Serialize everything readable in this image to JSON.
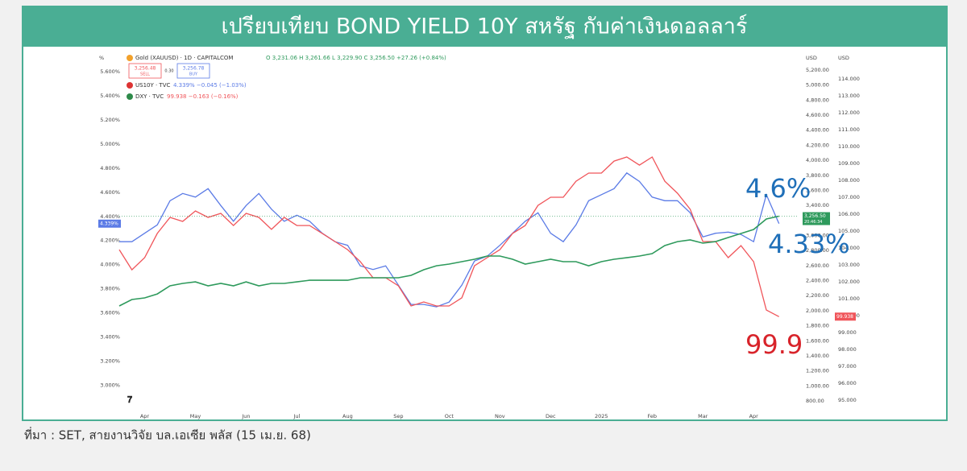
{
  "chart_data": {
    "type": "line",
    "title": "เปรียบเทียบ BOND YIELD 10Y สหรัฐ กับค่าเงินดอลลาร์",
    "source": "ที่มา : SET, สายงานวิจัย บล.เอเซีย พลัส (15 เม.ย. 68)",
    "axis_units": [
      "%",
      "USD",
      "USD"
    ],
    "x": [
      0.5,
      0.75,
      1,
      1.25,
      1.5,
      1.75,
      2,
      2.25,
      2.5,
      2.75,
      3,
      3.25,
      3.5,
      3.75,
      4,
      4.25,
      4.5,
      4.75,
      5,
      5.25,
      5.5,
      5.75,
      6,
      6.25,
      6.5,
      6.75,
      7,
      7.25,
      7.5,
      7.75,
      8,
      8.25,
      8.5,
      8.75,
      9,
      9.25,
      9.5,
      9.75,
      10,
      10.25,
      10.5,
      10.75,
      11,
      11.25,
      11.5,
      11.75,
      12,
      12.25,
      12.5,
      12.75,
      13,
      13.25,
      13.5
    ],
    "xlim": [
      0.5,
      13.87
    ],
    "xticks": [
      {
        "value": 1,
        "label": "Apr"
      },
      {
        "value": 2,
        "label": "May"
      },
      {
        "value": 3,
        "label": "Jun"
      },
      {
        "value": 4,
        "label": "Jul"
      },
      {
        "value": 5,
        "label": "Aug"
      },
      {
        "value": 6,
        "label": "Sep"
      },
      {
        "value": 7,
        "label": "Oct"
      },
      {
        "value": 8,
        "label": "Nov"
      },
      {
        "value": 9,
        "label": "Dec"
      },
      {
        "value": 10,
        "label": "2025"
      },
      {
        "value": 11,
        "label": "Feb"
      },
      {
        "value": 12,
        "label": "Mar"
      },
      {
        "value": 13,
        "label": "Apr"
      }
    ],
    "ylim": [
      2.79,
      5.74
    ],
    "yticks": [
      {
        "value": 3.0,
        "label": "3.000%"
      },
      {
        "value": 3.2,
        "label": "3.200%"
      },
      {
        "value": 3.4,
        "label": "3.400%"
      },
      {
        "value": 3.6,
        "label": "3.600%"
      },
      {
        "value": 3.8,
        "label": "3.800%"
      },
      {
        "value": 4.0,
        "label": "4.000%"
      },
      {
        "value": 4.2,
        "label": "4.200%"
      },
      {
        "value": 4.4,
        "label": "4.400%"
      },
      {
        "value": 4.6,
        "label": "4.600%"
      },
      {
        "value": 4.8,
        "label": "4.800%"
      },
      {
        "value": 5.0,
        "label": "5.000%"
      },
      {
        "value": 5.2,
        "label": "5.200%"
      },
      {
        "value": 5.4,
        "label": "5.400%"
      },
      {
        "value": 5.6,
        "label": "5.600%"
      }
    ],
    "y2lim": [
      672,
      5403
    ],
    "y2ticks": [
      {
        "value": 800,
        "label": "800.00"
      },
      {
        "value": 1000,
        "label": "1,000.00"
      },
      {
        "value": 1200,
        "label": "1,200.00"
      },
      {
        "value": 1400,
        "label": "1,400.00"
      },
      {
        "value": 1600,
        "label": "1,600.00"
      },
      {
        "value": 1800,
        "label": "1,800.00"
      },
      {
        "value": 2000,
        "label": "2,000.00"
      },
      {
        "value": 2200,
        "label": "2,200.00"
      },
      {
        "value": 2400,
        "label": "2,400.00"
      },
      {
        "value": 2600,
        "label": "2,600.00"
      },
      {
        "value": 2800,
        "label": "2,800.00"
      },
      {
        "value": 3000,
        "label": "3,000.00"
      },
      {
        "value": 3200,
        "label": "3,200.00"
      },
      {
        "value": 3400,
        "label": "3,400.00"
      },
      {
        "value": 3600,
        "label": "3,600.00"
      },
      {
        "value": 3800,
        "label": "3,800.00"
      },
      {
        "value": 4000,
        "label": "4,000.00"
      },
      {
        "value": 4200,
        "label": "4,200.00"
      },
      {
        "value": 4400,
        "label": "4,400.00"
      },
      {
        "value": 4600,
        "label": "4,600.00"
      },
      {
        "value": 4800,
        "label": "4,800.00"
      },
      {
        "value": 5000,
        "label": "5,000.00"
      },
      {
        "value": 5200,
        "label": "5,200.00"
      }
    ],
    "y3lim": [
      94.38,
      115.43
    ],
    "y3ticks": [
      {
        "value": 95,
        "label": "95.000"
      },
      {
        "value": 96,
        "label": "96.000"
      },
      {
        "value": 97,
        "label": "97.000"
      },
      {
        "value": 98,
        "label": "98.000"
      },
      {
        "value": 99,
        "label": "99.000"
      },
      {
        "value": 100,
        "label": "100.000"
      },
      {
        "value": 101,
        "label": "101.000"
      },
      {
        "value": 102,
        "label": "102.000"
      },
      {
        "value": 103,
        "label": "103.000"
      },
      {
        "value": 104,
        "label": "104.000"
      },
      {
        "value": 105,
        "label": "105.000"
      },
      {
        "value": 106,
        "label": "106.000"
      },
      {
        "value": 107,
        "label": "107.000"
      },
      {
        "value": 108,
        "label": "108.000"
      },
      {
        "value": 109,
        "label": "109.000"
      },
      {
        "value": 110,
        "label": "110.000"
      },
      {
        "value": 111,
        "label": "111.000"
      },
      {
        "value": 112,
        "label": "112.000"
      },
      {
        "value": 113,
        "label": "113.000"
      },
      {
        "value": 114,
        "label": "114.000"
      }
    ],
    "series": [
      {
        "name": "US10Y · TVC",
        "quote": "4.339% −0.045 (−1.03%)",
        "color": "#5b7be6",
        "axis": "y",
        "values": [
          4.19,
          4.19,
          4.26,
          4.33,
          4.53,
          4.59,
          4.56,
          4.63,
          4.49,
          4.36,
          4.49,
          4.59,
          4.46,
          4.36,
          4.41,
          4.36,
          4.26,
          4.19,
          4.16,
          3.99,
          3.96,
          3.99,
          3.83,
          3.67,
          3.67,
          3.65,
          3.69,
          3.83,
          4.03,
          4.07,
          4.16,
          4.26,
          4.36,
          4.43,
          4.26,
          4.19,
          4.33,
          4.53,
          4.58,
          4.63,
          4.76,
          4.69,
          4.56,
          4.53,
          4.53,
          4.43,
          4.23,
          4.26,
          4.27,
          4.25,
          4.19,
          4.58,
          4.34
        ]
      },
      {
        "name": "DXY · TVC",
        "quote": "99.938 −0.163 (−0.16%)",
        "color": "#f0555a",
        "axis": "y3",
        "values": [
          103.9,
          102.71,
          103.43,
          104.86,
          105.81,
          105.57,
          106.19,
          105.81,
          106.05,
          105.33,
          106.05,
          105.81,
          105.1,
          105.81,
          105.33,
          105.33,
          104.86,
          104.38,
          103.9,
          103.19,
          102.24,
          102.24,
          101.76,
          100.57,
          100.81,
          100.57,
          100.57,
          101.05,
          102.95,
          103.43,
          103.9,
          104.86,
          105.33,
          106.52,
          107,
          107,
          107.95,
          108.43,
          108.43,
          109.14,
          109.38,
          108.9,
          109.38,
          107.95,
          107.24,
          106.29,
          104.38,
          104.38,
          103.43,
          104.14,
          103.19,
          100.33,
          99.94
        ]
      },
      {
        "name": "Gold (XAUUSD) · 1D · CAPITALCOM",
        "quote": "O 3,231.06 H 3,261.66 L 3,229.90 C 3,256.50 +27.26 (+0.84%)",
        "color": "#2e9a5c",
        "axis": "y2",
        "values": [
          2063,
          2149,
          2170,
          2223,
          2331,
          2363,
          2384,
          2331,
          2363,
          2331,
          2384,
          2331,
          2363,
          2363,
          2384,
          2405,
          2405,
          2405,
          2405,
          2438,
          2438,
          2438,
          2438,
          2470,
          2545,
          2598,
          2620,
          2652,
          2684,
          2727,
          2727,
          2684,
          2620,
          2652,
          2684,
          2652,
          2652,
          2598,
          2652,
          2684,
          2705,
          2727,
          2759,
          2866,
          2919,
          2941,
          2898,
          2919,
          2973,
          3027,
          3080,
          3219,
          3256.5
        ]
      }
    ],
    "order_panel": {
      "sell_price": "3,256.48",
      "sell_label": "SELL",
      "spread": "0.30",
      "buy_price": "3,256.78",
      "buy_label": "BUY"
    },
    "price_tags": [
      "4.339%",
      "3,256.50",
      "20:46:34",
      "99.938"
    ],
    "annotations": [
      {
        "text": "4.6%",
        "color": "#1f6fb8"
      },
      {
        "text": "4.33%",
        "color": "#1f6fb8"
      },
      {
        "text": "99.9",
        "color": "#d8232a"
      }
    ],
    "grid": false
  }
}
